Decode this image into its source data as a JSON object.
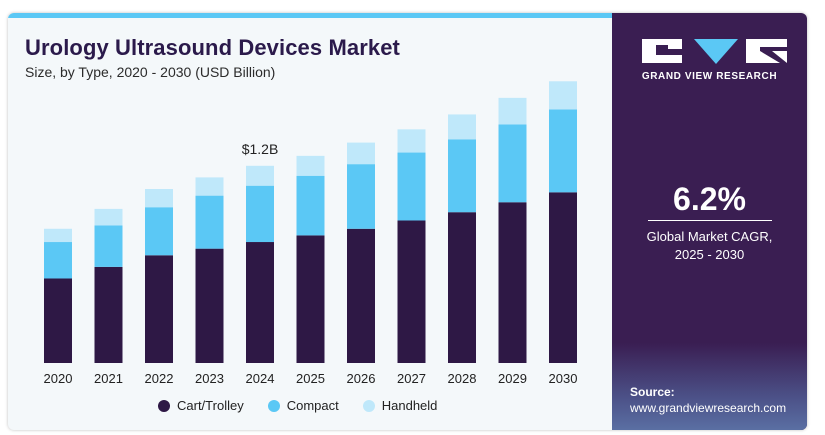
{
  "header": {
    "title": "Urology Ultrasound Devices Market",
    "subtitle": "Size, by Type, 2020 - 2030 (USD Billion)"
  },
  "chart_data": {
    "type": "bar",
    "stacked": true,
    "categories": [
      "2020",
      "2021",
      "2022",
      "2023",
      "2024",
      "2025",
      "2026",
      "2027",
      "2028",
      "2029",
      "2030"
    ],
    "series": [
      {
        "name": "Cart/Trolley",
        "color": "#2e1845",
        "values": [
          0.51,
          0.58,
          0.65,
          0.69,
          0.73,
          0.77,
          0.81,
          0.86,
          0.91,
          0.97,
          1.03
        ]
      },
      {
        "name": "Compact",
        "color": "#5bc8f5",
        "values": [
          0.22,
          0.25,
          0.29,
          0.32,
          0.34,
          0.36,
          0.39,
          0.41,
          0.44,
          0.47,
          0.5
        ]
      },
      {
        "name": "Handheld",
        "color": "#bfe8fa",
        "values": [
          0.08,
          0.1,
          0.11,
          0.11,
          0.12,
          0.12,
          0.13,
          0.14,
          0.15,
          0.16,
          0.17
        ]
      }
    ],
    "annotations": [
      {
        "category": "2024",
        "text": "$1.2B"
      }
    ],
    "ylim": [
      0,
      1.75
    ],
    "grid": false,
    "legend": "bottom"
  },
  "sidebar": {
    "brand": "GRAND VIEW RESEARCH",
    "cagr_value": "6.2%",
    "cagr_label_line1": "Global  Market CAGR,",
    "cagr_label_line2": "2025 - 2030",
    "source_title": "Source:",
    "source_url": "www.grandviewresearch.com"
  }
}
